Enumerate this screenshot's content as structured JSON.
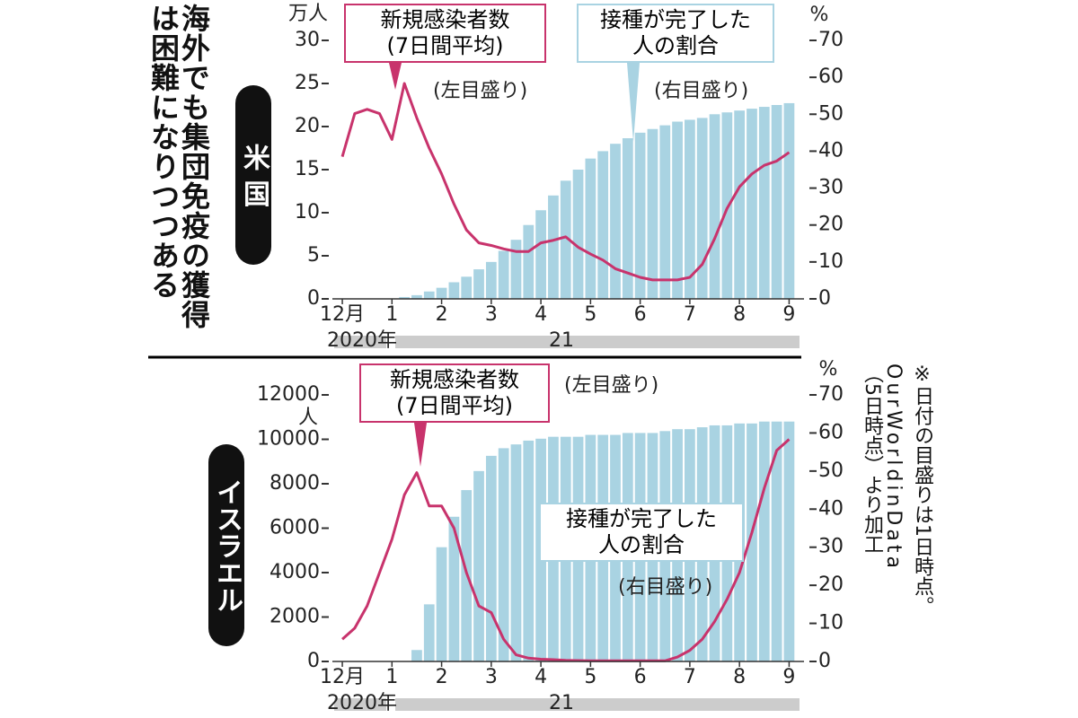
{
  "title": [
    "海外でも集団免疫の獲得",
    "は困難になりつつある"
  ],
  "note": "※日付の目盛りは1日時点。",
  "source": [
    "OurWorldinData",
    "（5日時点）より加工"
  ],
  "chart_data": [
    {
      "type": "combo",
      "label": "米 国",
      "y_unit": "万人",
      "y2_unit": "%",
      "x": [
        0,
        0.25,
        0.5,
        0.75,
        1,
        1.25,
        1.5,
        1.75,
        2,
        2.25,
        2.5,
        2.75,
        3,
        3.25,
        3.5,
        3.75,
        4,
        4.25,
        4.5,
        4.75,
        5,
        5.25,
        5.5,
        5.75,
        6,
        6.25,
        6.5,
        6.75,
        7,
        7.25,
        7.5,
        7.75,
        8,
        8.25,
        8.5,
        8.75,
        9
      ],
      "xlim": [
        -0.2,
        9.3
      ],
      "xticks": [
        {
          "value": 0,
          "label": "12月"
        },
        1,
        2,
        3,
        4,
        5,
        6,
        7,
        8,
        9
      ],
      "year_labels": [
        "2020年",
        "21"
      ],
      "ylim": [
        0,
        30
      ],
      "yticks": [
        0,
        5,
        10,
        15,
        20,
        25,
        30
      ],
      "y2lim": [
        0,
        70
      ],
      "y2ticks": [
        0,
        10,
        20,
        30,
        40,
        50,
        60,
        70
      ],
      "series": [
        {
          "name": [
            "新規感染者数",
            "(7日間平均)"
          ],
          "scale_note": "(左目盛り)",
          "type": "line",
          "color": "#c8336c",
          "values": [
            16.5,
            21.5,
            22,
            21.5,
            18.5,
            25,
            21,
            17.5,
            14.5,
            11,
            8,
            6.5,
            6.2,
            5.8,
            5.5,
            5.5,
            6.5,
            6.8,
            7.2,
            6,
            5.2,
            4.5,
            3.5,
            3,
            2.5,
            2.2,
            2.2,
            2.2,
            2.5,
            4,
            7,
            10.5,
            13,
            14.5,
            15.5,
            16,
            17
          ]
        },
        {
          "name": [
            "接種が完了した",
            "人の割合"
          ],
          "scale_note": "(右目盛り)",
          "type": "bar",
          "axis": "y2",
          "color": "#a9d3e2",
          "values": [
            0,
            0,
            0,
            0,
            0,
            0.5,
            1,
            2,
            3,
            4.5,
            6,
            8,
            10,
            13,
            16,
            20,
            24,
            28,
            32,
            35,
            38,
            40,
            42,
            43.5,
            45,
            46,
            47,
            48,
            48.5,
            49,
            50,
            50.5,
            51,
            51.5,
            52,
            52.5,
            53
          ]
        }
      ]
    },
    {
      "type": "combo",
      "label": "イスラエル",
      "y_unit": "人",
      "y2_unit": "%",
      "x": [
        0,
        0.25,
        0.5,
        0.75,
        1,
        1.25,
        1.5,
        1.75,
        2,
        2.25,
        2.5,
        2.75,
        3,
        3.25,
        3.5,
        3.75,
        4,
        4.25,
        4.5,
        4.75,
        5,
        5.25,
        5.5,
        5.75,
        6,
        6.25,
        6.5,
        6.75,
        7,
        7.25,
        7.5,
        7.75,
        8,
        8.25,
        8.5,
        8.75,
        9
      ],
      "xlim": [
        -0.2,
        9.3
      ],
      "xticks": [
        {
          "value": 0,
          "label": "12月"
        },
        1,
        2,
        3,
        4,
        5,
        6,
        7,
        8,
        9
      ],
      "year_labels": [
        "2020年",
        "21"
      ],
      "ylim": [
        0,
        12000
      ],
      "yticks": [
        0,
        2000,
        4000,
        6000,
        8000,
        10000,
        12000
      ],
      "y2lim": [
        0,
        70
      ],
      "y2ticks": [
        0,
        10,
        20,
        30,
        40,
        50,
        60,
        70
      ],
      "series": [
        {
          "name": [
            "新規感染者数",
            "(7日間平均)"
          ],
          "scale_note": "(左目盛り)",
          "type": "line",
          "color": "#c8336c",
          "values": [
            1000,
            1500,
            2500,
            4000,
            5500,
            7500,
            8500,
            7000,
            7000,
            6000,
            4000,
            2500,
            2200,
            1000,
            300,
            150,
            100,
            80,
            50,
            40,
            30,
            30,
            30,
            30,
            30,
            30,
            30,
            200,
            500,
            1000,
            1800,
            2800,
            4000,
            5800,
            7800,
            9500,
            10000
          ]
        },
        {
          "name": [
            "接種が完了した",
            "人の割合"
          ],
          "scale_note": "(右目盛り)",
          "type": "bar",
          "axis": "y2",
          "color": "#a9d3e2",
          "values": [
            0,
            0,
            0,
            0,
            0,
            0,
            3,
            15,
            30,
            38,
            45,
            50,
            54,
            56,
            57,
            58,
            58.5,
            59,
            59,
            59,
            59.5,
            59.5,
            59.5,
            60,
            60,
            60,
            60.5,
            61,
            61,
            61.5,
            62,
            62,
            62.5,
            62.5,
            63,
            63,
            63
          ]
        }
      ]
    }
  ]
}
